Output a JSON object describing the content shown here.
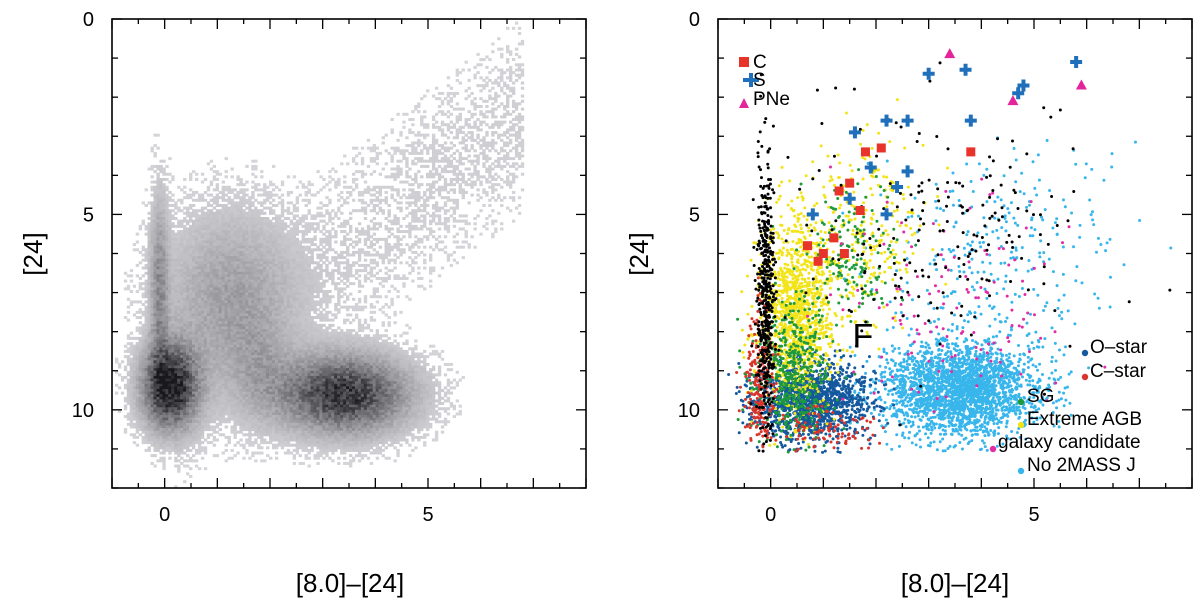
{
  "chart_data": [
    {
      "type": "scatter",
      "panel": "left",
      "title": "",
      "xlabel": "[8.0]–[24]",
      "ylabel": "[24]",
      "xlim": [
        -1.0,
        8.0
      ],
      "ylim": [
        12.0,
        0.0
      ],
      "y_inverted": true,
      "x_ticks": [
        {
          "value": 0,
          "label": "0"
        },
        {
          "value": 5,
          "label": "5"
        }
      ],
      "y_ticks": [
        {
          "value": 0,
          "label": "0"
        },
        {
          "value": 5,
          "label": "5"
        },
        {
          "value": 10,
          "label": "10"
        }
      ],
      "grid": false,
      "style": "grayscale density (Hess diagram)",
      "density_components": [
        {
          "name": "",
          "center": [
            0.1,
            9.4
          ],
          "sigma": [
            0.35,
            0.7
          ],
          "weight": 1.0
        },
        {
          "name": "",
          "center": [
            3.4,
            9.6
          ],
          "sigma": [
            0.8,
            0.65
          ],
          "weight": 0.85
        },
        {
          "name": "",
          "center": [
            -0.1,
            7.0
          ],
          "sigma": [
            0.12,
            1.6
          ],
          "weight": 0.35
        },
        {
          "name": "",
          "center": [
            1.2,
            7.0
          ],
          "sigma": [
            0.8,
            1.4
          ],
          "weight": 0.25
        },
        {
          "name": "",
          "center": [
            1.8,
            9.0
          ],
          "sigma": [
            0.4,
            0.9
          ],
          "weight": 0.15
        }
      ]
    },
    {
      "type": "scatter",
      "panel": "right",
      "title": "",
      "xlabel": "[8.0]–[24]",
      "ylabel": "[24]",
      "xlim": [
        -1.0,
        8.0
      ],
      "ylim": [
        12.0,
        0.0
      ],
      "y_inverted": true,
      "x_ticks": [
        {
          "value": 0,
          "label": "0"
        },
        {
          "value": 5,
          "label": "5"
        }
      ],
      "y_ticks": [
        {
          "value": 0,
          "label": "0"
        },
        {
          "value": 5,
          "label": "5"
        },
        {
          "value": 10,
          "label": "10"
        }
      ],
      "grid": false,
      "region_label": {
        "text": "F",
        "x": 1.75,
        "y": 8.1
      },
      "legend_top": {
        "placement": "top-left",
        "entries": [
          {
            "label": "C",
            "marker": "square",
            "color": "#e8332b"
          },
          {
            "label": "S",
            "marker": "plus",
            "color": "#1f6fba"
          },
          {
            "label": "PNe",
            "marker": "triangle",
            "color": "#e4249a"
          }
        ]
      },
      "legend_bottom": {
        "placement": "bottom-right",
        "entries": [
          {
            "label": "O–star",
            "color": "#14589e"
          },
          {
            "label": "C–star",
            "color": "#d8352d"
          },
          {
            "label": "SG",
            "color": "#1e9a3c"
          },
          {
            "label": "Extreme AGB",
            "color": "#f2e419"
          },
          {
            "label": "galaxy candidate",
            "color": "#e02da6"
          },
          {
            "label": "No 2MASS J",
            "color": "#38b6ec"
          }
        ]
      },
      "dot_series": [
        {
          "name": "No 2MASS J",
          "color": "#38b6ec",
          "components": [
            {
              "center": [
                3.6,
                9.5
              ],
              "sigma": [
                0.75,
                0.6
              ],
              "weight": 1.0
            },
            {
              "center": [
                4.5,
                6.0
              ],
              "sigma": [
                1.2,
                1.3
              ],
              "weight": 0.12
            }
          ]
        },
        {
          "name": "O–star",
          "color": "#14589e",
          "components": [
            {
              "center": [
                0.8,
                9.8
              ],
              "sigma": [
                0.55,
                0.5
              ],
              "weight": 1.0
            }
          ]
        },
        {
          "name": "Extreme AGB",
          "color": "#f2e419",
          "components": [
            {
              "center": [
                0.5,
                7.5
              ],
              "sigma": [
                0.35,
                1.2
              ],
              "weight": 1.0
            },
            {
              "center": [
                1.7,
                5.5
              ],
              "sigma": [
                0.6,
                1.3
              ],
              "weight": 0.25
            }
          ]
        },
        {
          "name": "SG",
          "color": "#1e9a3c",
          "components": [
            {
              "center": [
                0.4,
                9.0
              ],
              "sigma": [
                0.35,
                0.9
              ],
              "weight": 1.0
            },
            {
              "center": [
                1.5,
                6.0
              ],
              "sigma": [
                0.4,
                0.9
              ],
              "weight": 0.35
            }
          ]
        },
        {
          "name": "C–star",
          "color": "#d8352d",
          "components": [
            {
              "center": [
                -0.2,
                9.2
              ],
              "sigma": [
                0.15,
                0.9
              ],
              "weight": 0.7
            },
            {
              "center": [
                1.0,
                10.5
              ],
              "sigma": [
                0.5,
                0.3
              ],
              "weight": 0.3
            }
          ]
        },
        {
          "name": "galaxy candidate",
          "color": "#e02da6",
          "components": [
            {
              "center": [
                3.5,
                7.5
              ],
              "sigma": [
                1.0,
                1.6
              ],
              "weight": 1.0
            }
          ]
        },
        {
          "name": "",
          "color": "#000000",
          "components": [
            {
              "center": [
                -0.1,
                7.0
              ],
              "sigma": [
                0.08,
                1.9
              ],
              "weight": 0.7
            },
            {
              "center": [
                3.0,
                5.5
              ],
              "sigma": [
                1.5,
                1.6
              ],
              "weight": 0.3
            }
          ]
        }
      ],
      "marker_points": {
        "C": [
          [
            1.0,
            6.0
          ],
          [
            1.3,
            4.4
          ],
          [
            1.7,
            4.9
          ],
          [
            1.2,
            5.6
          ],
          [
            0.7,
            5.8
          ],
          [
            0.9,
            6.2
          ],
          [
            1.8,
            3.4
          ],
          [
            2.1,
            3.3
          ],
          [
            3.8,
            3.4
          ],
          [
            1.5,
            4.2
          ],
          [
            1.4,
            6.0
          ]
        ],
        "S": [
          [
            3.0,
            1.4
          ],
          [
            3.7,
            1.3
          ],
          [
            4.8,
            1.7
          ],
          [
            4.7,
            1.9
          ],
          [
            5.8,
            1.1
          ],
          [
            1.6,
            2.9
          ],
          [
            2.2,
            2.6
          ],
          [
            2.6,
            2.6
          ],
          [
            3.8,
            2.6
          ],
          [
            1.9,
            3.8
          ],
          [
            2.6,
            3.9
          ],
          [
            2.4,
            4.3
          ],
          [
            2.2,
            5.0
          ],
          [
            0.8,
            5.0
          ],
          [
            1.5,
            4.6
          ]
        ],
        "PNe": [
          [
            3.4,
            0.9
          ],
          [
            4.6,
            2.1
          ],
          [
            5.9,
            1.7
          ]
        ]
      }
    }
  ]
}
